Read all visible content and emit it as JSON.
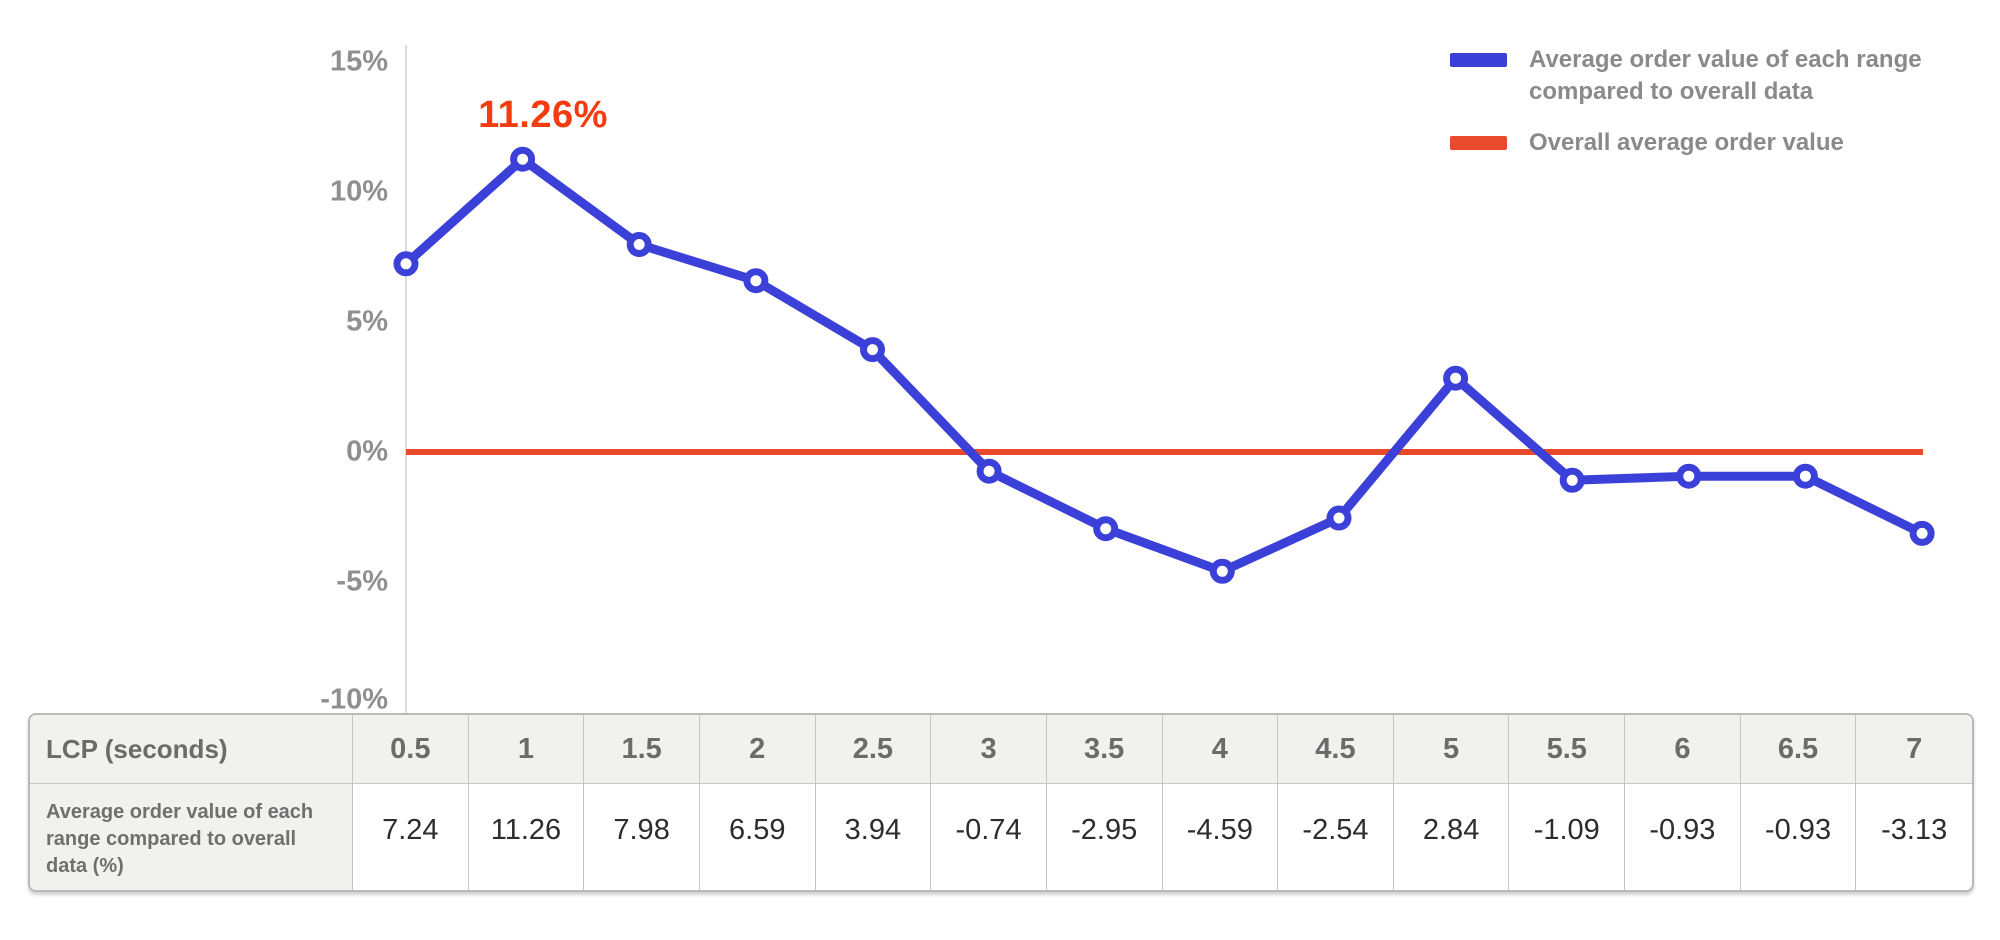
{
  "legend": {
    "series1_label": "Average order value of each range compared to overall data",
    "series2_label": "Overall average order value"
  },
  "annotation": {
    "text": "11.26%"
  },
  "chart_data": {
    "type": "line",
    "title": "",
    "xlabel": "LCP (seconds)",
    "ylabel": "",
    "x": [
      0.5,
      1,
      1.5,
      2,
      2.5,
      3,
      3.5,
      4,
      4.5,
      5,
      5.5,
      6,
      6.5,
      7
    ],
    "series": [
      {
        "name": "Average order value of each range compared to overall data",
        "type": "line",
        "color": "#3b41d8",
        "marker": "open-circle",
        "values": [
          7.24,
          11.26,
          7.98,
          6.59,
          3.94,
          -0.74,
          -2.95,
          -4.59,
          -2.54,
          2.84,
          -1.09,
          -0.93,
          -0.93,
          -3.13
        ]
      },
      {
        "name": "Overall average order value",
        "type": "baseline",
        "color": "#e84a2b",
        "value": 0
      }
    ],
    "ylim": [
      -10,
      15
    ],
    "yticks": [
      "15%",
      "10%",
      "5%",
      "0%",
      "-5%",
      "-10%"
    ],
    "ytick_values": [
      15,
      10,
      5,
      0,
      -5,
      -10
    ],
    "grid": false,
    "legend_position": "top-right",
    "annotation": {
      "text": "11.26%",
      "x": 1,
      "y": 11.26,
      "color": "#f33d10"
    }
  },
  "table": {
    "header_label": "LCP (seconds)",
    "row_label": "Average order value of each range compared to overall data (%)",
    "columns": [
      "0.5",
      "1",
      "1.5",
      "2",
      "2.5",
      "3",
      "3.5",
      "4",
      "4.5",
      "5",
      "5.5",
      "6",
      "6.5",
      "7"
    ],
    "values": [
      "7.24",
      "11.26",
      "7.98",
      "6.59",
      "3.94",
      "-0.74",
      "-2.95",
      "-4.59",
      "-2.54",
      "2.84",
      "-1.09",
      "-0.93",
      "-0.93",
      "-3.13"
    ]
  },
  "colors": {
    "blue": "#3b41d8",
    "red": "#e84a2b",
    "annotation": "#f33d10",
    "axis_line": "#dcdcdc",
    "tick_label": "#8f8f8f",
    "legend_text": "#8a8a8a",
    "table_header_text": "#6b6b6b",
    "table_value_text": "#2d2d2d",
    "table_header_bg": "#f1f1ef",
    "table_border": "#b9b9b9"
  }
}
